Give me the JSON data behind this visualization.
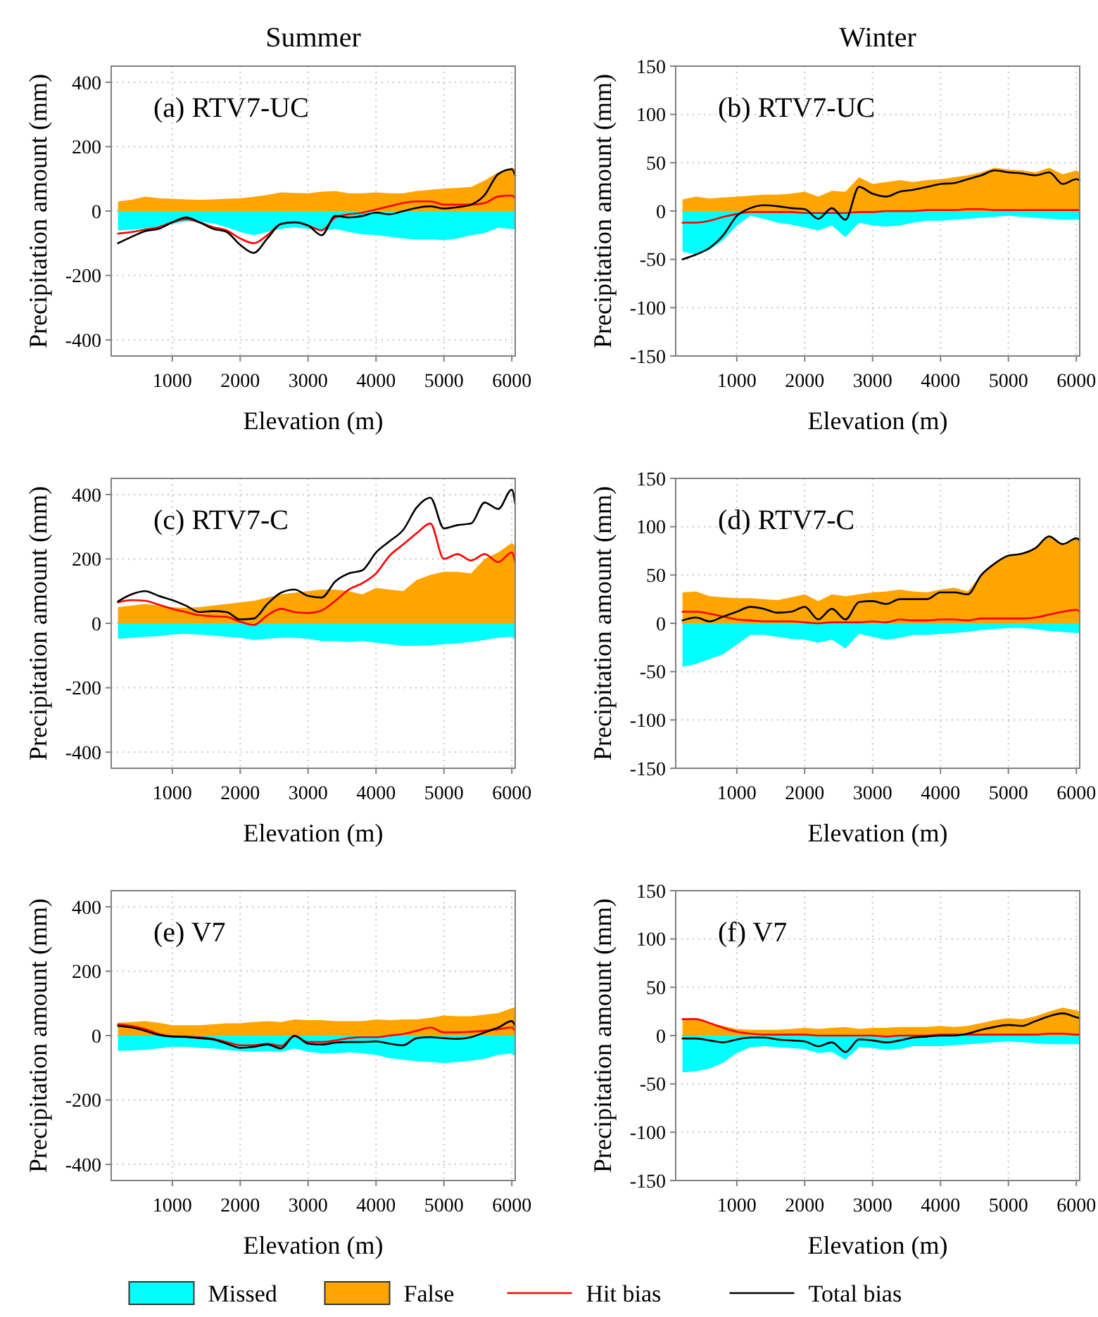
{
  "chart_data": [
    {
      "type": "area",
      "title": "Summer",
      "xlabel": "Elevation (m)",
      "ylabel": "Precipitation amount (mm)",
      "annotations": [
        "(a) RTV7-UC"
      ],
      "grid": true,
      "legend": "bottom",
      "xlim": [
        100,
        6050
      ],
      "xticks": [
        1000,
        2000,
        3000,
        4000,
        5000,
        6000
      ],
      "ylim": [
        -450,
        450
      ],
      "yticks": [
        -400,
        -200,
        0,
        200,
        400
      ],
      "x": [
        200,
        400,
        600,
        800,
        1000,
        1200,
        1400,
        1600,
        1800,
        2000,
        2200,
        2400,
        2600,
        2800,
        3000,
        3200,
        3400,
        3600,
        3800,
        4000,
        4200,
        4400,
        4600,
        4800,
        5000,
        5200,
        5400,
        5600,
        5800,
        6000,
        6050
      ],
      "series": [
        {
          "name": "Missed",
          "type": "area",
          "color": "#00ffff",
          "values": [
            -60,
            -58,
            -55,
            -50,
            -40,
            -32,
            -32,
            -38,
            -50,
            -65,
            -75,
            -65,
            -55,
            -50,
            -55,
            -62,
            -55,
            -65,
            -72,
            -75,
            -80,
            -85,
            -88,
            -88,
            -90,
            -85,
            -75,
            -68,
            -52,
            -55,
            -58
          ]
        },
        {
          "name": "False",
          "type": "area",
          "color": "#ffa500",
          "values": [
            30,
            35,
            45,
            40,
            38,
            36,
            35,
            36,
            38,
            40,
            44,
            50,
            58,
            56,
            55,
            60,
            62,
            55,
            55,
            58,
            55,
            55,
            62,
            66,
            70,
            72,
            75,
            95,
            120,
            135,
            132
          ]
        },
        {
          "name": "Hit bias",
          "type": "line",
          "color": "#ff0000",
          "values": [
            -70,
            -65,
            -58,
            -50,
            -35,
            -25,
            -35,
            -50,
            -60,
            -85,
            -100,
            -75,
            -40,
            -35,
            -45,
            -60,
            -20,
            -10,
            -5,
            5,
            15,
            25,
            30,
            30,
            20,
            20,
            20,
            25,
            45,
            48,
            40
          ]
        },
        {
          "name": "Total bias",
          "type": "line",
          "color": "#000000",
          "values": [
            -100,
            -80,
            -62,
            -55,
            -35,
            -20,
            -35,
            -55,
            -65,
            -105,
            -130,
            -85,
            -40,
            -35,
            -45,
            -75,
            -15,
            -20,
            -15,
            -5,
            -10,
            0,
            10,
            15,
            8,
            12,
            20,
            50,
            115,
            130,
            110
          ]
        }
      ]
    },
    {
      "type": "area",
      "title": "Winter",
      "xlabel": "Elevation (m)",
      "ylabel": "Precipitation amount (mm)",
      "annotations": [
        "(b) RTV7-UC"
      ],
      "grid": true,
      "xlim": [
        100,
        6050
      ],
      "xticks": [
        1000,
        2000,
        3000,
        4000,
        5000,
        6000
      ],
      "ylim": [
        -150,
        150
      ],
      "yticks": [
        -150,
        -100,
        -50,
        0,
        50,
        100,
        150
      ],
      "x": [
        200,
        400,
        600,
        800,
        1000,
        1200,
        1400,
        1600,
        1800,
        2000,
        2200,
        2400,
        2600,
        2800,
        3000,
        3200,
        3400,
        3600,
        3800,
        4000,
        4200,
        4400,
        4600,
        4800,
        5000,
        5200,
        5400,
        5600,
        5800,
        6000,
        6050
      ],
      "series": [
        {
          "type": "area",
          "color": "#00ffff",
          "values": [
            -42,
            -45,
            -40,
            -30,
            -15,
            -5,
            -8,
            -12,
            -14,
            -17,
            -20,
            -15,
            -27,
            -12,
            -15,
            -16,
            -15,
            -12,
            -10,
            -10,
            -9,
            -8,
            -7,
            -6,
            -5,
            -6,
            -7,
            -8,
            -9,
            -9,
            -9
          ]
        },
        {
          "type": "area",
          "color": "#ffa500",
          "values": [
            12,
            15,
            13,
            14,
            15,
            16,
            17,
            17,
            18,
            20,
            15,
            21,
            20,
            35,
            28,
            30,
            32,
            30,
            32,
            33,
            35,
            37,
            40,
            45,
            43,
            42,
            40,
            45,
            38,
            42,
            40
          ]
        },
        {
          "type": "line",
          "color": "#ff0000",
          "values": [
            -12,
            -12,
            -10,
            -6,
            -3,
            -1,
            -1,
            -1,
            -1,
            -2,
            -2,
            -2,
            -2,
            -1,
            -1,
            0,
            0,
            0,
            1,
            1,
            1,
            2,
            2,
            1,
            1,
            1,
            1,
            1,
            1,
            1,
            1
          ]
        },
        {
          "type": "line",
          "color": "#000000",
          "values": [
            -50,
            -45,
            -38,
            -25,
            -5,
            3,
            6,
            5,
            3,
            2,
            -8,
            3,
            -9,
            25,
            18,
            15,
            20,
            22,
            25,
            28,
            29,
            33,
            37,
            42,
            40,
            39,
            37,
            40,
            28,
            33,
            32
          ]
        }
      ]
    },
    {
      "type": "area",
      "xlabel": "Elevation (m)",
      "ylabel": "Precipitation amount (mm)",
      "annotations": [
        "(c) RTV7-C"
      ],
      "grid": true,
      "xlim": [
        100,
        6050
      ],
      "xticks": [
        1000,
        2000,
        3000,
        4000,
        5000,
        6000
      ],
      "ylim": [
        -450,
        450
      ],
      "yticks": [
        -400,
        -200,
        0,
        200,
        400
      ],
      "x": [
        200,
        400,
        600,
        800,
        1000,
        1200,
        1400,
        1600,
        1800,
        2000,
        2200,
        2400,
        2600,
        2800,
        3000,
        3200,
        3400,
        3600,
        3800,
        4000,
        4200,
        4400,
        4600,
        4800,
        5000,
        5200,
        5400,
        5600,
        5800,
        6000,
        6050
      ],
      "series": [
        {
          "type": "area",
          "color": "#00ffff",
          "values": [
            -48,
            -45,
            -42,
            -40,
            -35,
            -32,
            -35,
            -38,
            -42,
            -45,
            -52,
            -48,
            -45,
            -45,
            -48,
            -55,
            -55,
            -58,
            -55,
            -60,
            -65,
            -70,
            -70,
            -68,
            -65,
            -62,
            -58,
            -52,
            -45,
            -42,
            -50
          ]
        },
        {
          "type": "area",
          "color": "#ffa500",
          "values": [
            50,
            55,
            60,
            55,
            50,
            48,
            50,
            55,
            60,
            65,
            70,
            80,
            90,
            95,
            100,
            105,
            105,
            100,
            90,
            110,
            105,
            100,
            135,
            150,
            160,
            160,
            155,
            200,
            220,
            250,
            240
          ]
        },
        {
          "type": "line",
          "color": "#ff0000",
          "values": [
            65,
            72,
            70,
            58,
            45,
            35,
            25,
            22,
            20,
            5,
            -5,
            25,
            45,
            35,
            32,
            40,
            70,
            105,
            125,
            155,
            210,
            245,
            280,
            310,
            200,
            215,
            195,
            215,
            190,
            220,
            190
          ]
        },
        {
          "type": "line",
          "color": "#000000",
          "values": [
            68,
            90,
            100,
            85,
            72,
            55,
            35,
            38,
            35,
            12,
            15,
            60,
            95,
            105,
            85,
            80,
            130,
            155,
            165,
            220,
            255,
            290,
            360,
            390,
            295,
            305,
            310,
            375,
            355,
            415,
            370
          ]
        }
      ]
    },
    {
      "type": "area",
      "xlabel": "Elevation (m)",
      "ylabel": "Precipitation amount (mm)",
      "annotations": [
        "(d) RTV7-C"
      ],
      "grid": true,
      "xlim": [
        100,
        6050
      ],
      "xticks": [
        1000,
        2000,
        3000,
        4000,
        5000,
        6000
      ],
      "ylim": [
        -150,
        150
      ],
      "yticks": [
        -150,
        -100,
        -50,
        0,
        50,
        100,
        150
      ],
      "x": [
        200,
        400,
        600,
        800,
        1000,
        1200,
        1400,
        1600,
        1800,
        2000,
        2200,
        2400,
        2600,
        2800,
        3000,
        3200,
        3400,
        3600,
        3800,
        4000,
        4200,
        4400,
        4600,
        4800,
        5000,
        5200,
        5400,
        5600,
        5800,
        6000,
        6050
      ],
      "series": [
        {
          "type": "area",
          "color": "#00ffff",
          "values": [
            -45,
            -42,
            -37,
            -32,
            -22,
            -12,
            -12,
            -14,
            -16,
            -17,
            -20,
            -17,
            -26,
            -11,
            -14,
            -17,
            -15,
            -12,
            -12,
            -11,
            -10,
            -9,
            -7,
            -6,
            -5,
            -5,
            -6,
            -8,
            -9,
            -10,
            -10
          ]
        },
        {
          "type": "area",
          "color": "#ffa500",
          "values": [
            32,
            33,
            28,
            27,
            26,
            26,
            25,
            24,
            27,
            30,
            23,
            30,
            28,
            30,
            32,
            33,
            35,
            33,
            32,
            35,
            37,
            33,
            50,
            62,
            70,
            72,
            78,
            90,
            82,
            88,
            85
          ]
        },
        {
          "type": "line",
          "color": "#ff0000",
          "values": [
            12,
            12,
            10,
            7,
            4,
            3,
            2,
            2,
            2,
            1,
            0,
            1,
            1,
            1,
            2,
            1,
            4,
            3,
            3,
            4,
            4,
            3,
            5,
            5,
            5,
            5,
            6,
            9,
            12,
            14,
            12
          ]
        },
        {
          "type": "line",
          "color": "#000000",
          "values": [
            3,
            6,
            2,
            7,
            12,
            17,
            15,
            11,
            12,
            17,
            4,
            15,
            4,
            22,
            23,
            20,
            25,
            25,
            25,
            32,
            32,
            30,
            50,
            62,
            70,
            72,
            78,
            90,
            82,
            88,
            86
          ]
        }
      ]
    },
    {
      "type": "area",
      "xlabel": "Elevation (m)",
      "ylabel": "Precipitation amount (mm)",
      "annotations": [
        "(e) V7"
      ],
      "grid": true,
      "xlim": [
        100,
        6050
      ],
      "xticks": [
        1000,
        2000,
        3000,
        4000,
        5000,
        6000
      ],
      "ylim": [
        -450,
        450
      ],
      "yticks": [
        -400,
        -200,
        0,
        200,
        400
      ],
      "x": [
        200,
        400,
        600,
        800,
        1000,
        1200,
        1400,
        1600,
        1800,
        2000,
        2200,
        2400,
        2600,
        2800,
        3000,
        3200,
        3400,
        3600,
        3800,
        4000,
        4200,
        4400,
        4600,
        4800,
        5000,
        5200,
        5400,
        5600,
        5800,
        6000,
        6050
      ],
      "series": [
        {
          "type": "area",
          "color": "#00ffff",
          "values": [
            -48,
            -46,
            -44,
            -40,
            -35,
            -35,
            -38,
            -40,
            -45,
            -48,
            -50,
            -48,
            -50,
            -40,
            -50,
            -55,
            -55,
            -52,
            -55,
            -60,
            -70,
            -75,
            -80,
            -82,
            -85,
            -82,
            -78,
            -72,
            -60,
            -55,
            -65
          ]
        },
        {
          "type": "area",
          "color": "#ffa500",
          "values": [
            40,
            42,
            45,
            40,
            32,
            32,
            32,
            35,
            38,
            38,
            42,
            45,
            42,
            50,
            48,
            48,
            45,
            45,
            45,
            50,
            48,
            50,
            50,
            55,
            62,
            60,
            60,
            65,
            70,
            85,
            88
          ]
        },
        {
          "type": "line",
          "color": "#ff0000",
          "values": [
            35,
            30,
            20,
            5,
            -2,
            -3,
            -5,
            -10,
            -20,
            -30,
            -30,
            -25,
            -32,
            -2,
            -20,
            -20,
            -15,
            -8,
            -5,
            -5,
            0,
            5,
            15,
            25,
            10,
            10,
            12,
            15,
            20,
            25,
            15
          ]
        },
        {
          "type": "line",
          "color": "#000000",
          "values": [
            30,
            25,
            15,
            2,
            -3,
            -4,
            -8,
            -12,
            -25,
            -38,
            -35,
            -28,
            -40,
            0,
            -25,
            -28,
            -22,
            -20,
            -20,
            -18,
            -25,
            -30,
            -8,
            -5,
            -8,
            -10,
            -5,
            10,
            25,
            45,
            30
          ]
        }
      ]
    },
    {
      "type": "area",
      "xlabel": "Elevation (m)",
      "ylabel": "Precipitation amount (mm)",
      "annotations": [
        "(f) V7"
      ],
      "grid": true,
      "xlim": [
        100,
        6050
      ],
      "xticks": [
        1000,
        2000,
        3000,
        4000,
        5000,
        6000
      ],
      "ylim": [
        -150,
        150
      ],
      "yticks": [
        -150,
        -100,
        -50,
        0,
        50,
        100,
        150
      ],
      "x": [
        200,
        400,
        600,
        800,
        1000,
        1200,
        1400,
        1600,
        1800,
        2000,
        2200,
        2400,
        2600,
        2800,
        3000,
        3200,
        3400,
        3600,
        3800,
        4000,
        4200,
        4400,
        4600,
        4800,
        5000,
        5200,
        5400,
        5600,
        5800,
        6000,
        6050
      ],
      "series": [
        {
          "type": "area",
          "color": "#00ffff",
          "values": [
            -38,
            -37,
            -34,
            -28,
            -18,
            -12,
            -11,
            -12,
            -13,
            -14,
            -18,
            -17,
            -25,
            -12,
            -13,
            -15,
            -14,
            -11,
            -11,
            -11,
            -10,
            -9,
            -8,
            -7,
            -6,
            -7,
            -8,
            -9,
            -9,
            -9,
            -9
          ]
        },
        {
          "type": "area",
          "color": "#ffa500",
          "values": [
            17,
            18,
            13,
            10,
            7,
            6,
            6,
            6,
            7,
            8,
            7,
            8,
            9,
            7,
            8,
            8,
            9,
            9,
            9,
            10,
            9,
            10,
            13,
            16,
            18,
            17,
            20,
            25,
            29,
            26,
            25
          ]
        },
        {
          "type": "line",
          "color": "#ff0000",
          "values": [
            17,
            17,
            13,
            8,
            4,
            2,
            1,
            1,
            1,
            1,
            0,
            0,
            0,
            0,
            0,
            -1,
            0,
            0,
            0,
            1,
            1,
            1,
            1,
            1,
            1,
            1,
            1,
            2,
            2,
            1,
            1
          ]
        },
        {
          "type": "line",
          "color": "#000000",
          "values": [
            -3,
            -3,
            -5,
            -7,
            -4,
            -2,
            -2,
            -4,
            -5,
            -6,
            -11,
            -7,
            -17,
            -4,
            -5,
            -7,
            -5,
            -2,
            -1,
            0,
            0,
            2,
            6,
            9,
            11,
            10,
            15,
            20,
            23,
            19,
            18
          ]
        }
      ]
    }
  ]
}
